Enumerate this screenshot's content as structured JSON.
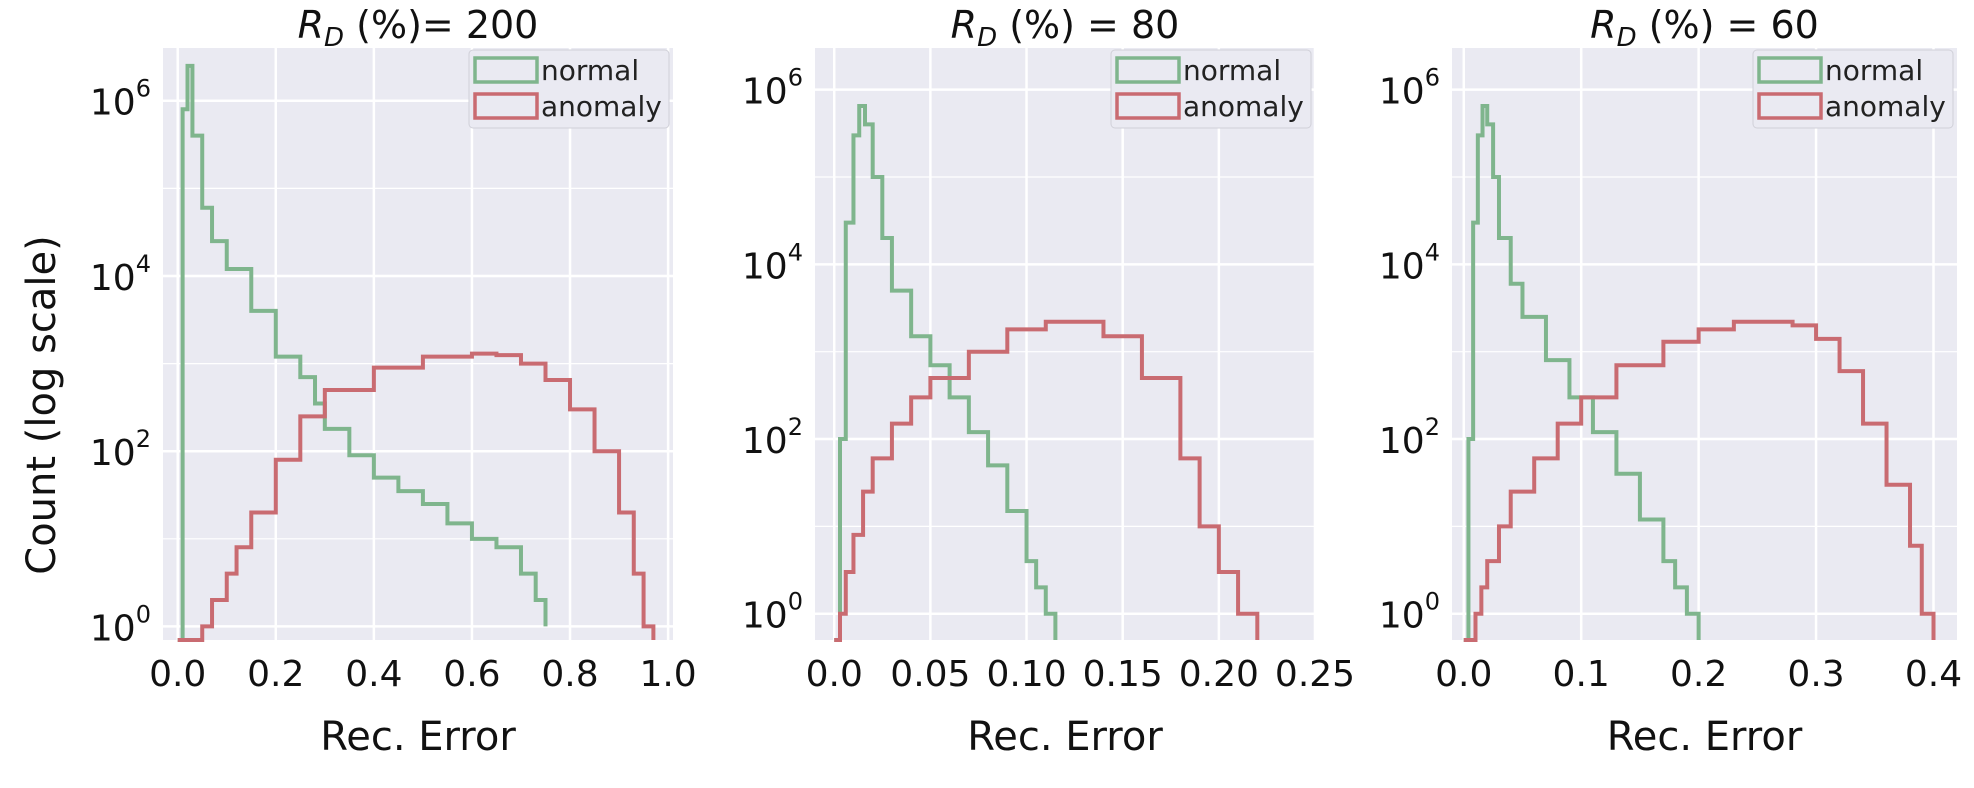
{
  "figure": {
    "ylabel": "Count (log scale)"
  },
  "chart_data": [
    {
      "type": "histogram",
      "title_prefix": "R",
      "title_sub": "D",
      "title_suffix": " (%)= 200",
      "xlabel": "Rec. Error",
      "ylabel": "Count (log scale)",
      "yscale": "log",
      "xlim": [
        -0.03,
        1.01
      ],
      "ylim": [
        0.7,
        4000000
      ],
      "xticks": [
        "0.0",
        "0.2",
        "0.4",
        "0.6",
        "0.8",
        "1.0"
      ],
      "xtick_values": [
        0.0,
        0.2,
        0.4,
        0.6,
        0.8,
        1.0
      ],
      "ytick_exponents": [
        "0",
        "2",
        "4",
        "6"
      ],
      "ytick_values": [
        1,
        100,
        10000,
        1000000
      ],
      "legend": {
        "placement": "top-right",
        "entries": [
          "normal",
          "anomaly"
        ]
      },
      "grid": true,
      "series": [
        {
          "name": "normal",
          "color": "#7fb58d",
          "x": [
            0.0,
            0.01,
            0.02,
            0.03,
            0.05,
            0.07,
            0.1,
            0.15,
            0.2,
            0.25,
            0.28,
            0.3,
            0.35,
            0.4,
            0.45,
            0.5,
            0.55,
            0.6,
            0.65,
            0.7,
            0.73,
            0.75
          ],
          "y": [
            0.7,
            800000,
            2500000,
            400000,
            60000,
            25000,
            12000,
            4000,
            1200,
            700,
            350,
            180,
            90,
            50,
            35,
            25,
            15,
            10,
            8,
            4,
            2,
            1
          ]
        },
        {
          "name": "anomaly",
          "color": "#c96b71",
          "x": [
            0.0,
            0.05,
            0.07,
            0.1,
            0.12,
            0.15,
            0.2,
            0.25,
            0.3,
            0.4,
            0.5,
            0.6,
            0.65,
            0.7,
            0.75,
            0.8,
            0.85,
            0.9,
            0.93,
            0.95,
            0.97
          ],
          "y": [
            0.7,
            1,
            2,
            4,
            8,
            20,
            80,
            250,
            500,
            900,
            1200,
            1300,
            1250,
            1000,
            650,
            300,
            100,
            20,
            4,
            1,
            0.7
          ]
        }
      ]
    },
    {
      "type": "histogram",
      "title_prefix": "R",
      "title_sub": "D",
      "title_suffix": " (%) = 80",
      "xlabel": "Rec. Error",
      "ylabel": "",
      "yscale": "log",
      "xlim": [
        -0.01,
        0.25
      ],
      "ylim": [
        0.5,
        3000000
      ],
      "xticks": [
        "0.0",
        "0.05",
        "0.10",
        "0.15",
        "0.20",
        "0.25"
      ],
      "xtick_values": [
        0.0,
        0.05,
        0.1,
        0.15,
        0.2,
        0.25
      ],
      "ytick_exponents": [
        "0",
        "2",
        "4",
        "6"
      ],
      "ytick_values": [
        1,
        100,
        10000,
        1000000
      ],
      "legend": {
        "placement": "top-right",
        "entries": [
          "normal",
          "anomaly"
        ]
      },
      "grid": true,
      "series": [
        {
          "name": "normal",
          "color": "#7fb58d",
          "x": [
            0.0,
            0.003,
            0.006,
            0.01,
            0.013,
            0.016,
            0.02,
            0.025,
            0.03,
            0.04,
            0.05,
            0.06,
            0.07,
            0.08,
            0.09,
            0.1,
            0.105,
            0.11,
            0.115
          ],
          "y": [
            0.5,
            100,
            30000,
            300000,
            650000,
            400000,
            100000,
            20000,
            5000,
            1500,
            700,
            300,
            120,
            50,
            15,
            4,
            2,
            1,
            0.5
          ]
        },
        {
          "name": "anomaly",
          "color": "#c96b71",
          "x": [
            0.0,
            0.003,
            0.006,
            0.01,
            0.015,
            0.02,
            0.03,
            0.04,
            0.05,
            0.07,
            0.09,
            0.11,
            0.125,
            0.14,
            0.16,
            0.18,
            0.19,
            0.2,
            0.21,
            0.22
          ],
          "y": [
            0.5,
            1,
            3,
            8,
            25,
            60,
            150,
            300,
            500,
            1000,
            1800,
            2200,
            2200,
            1500,
            500,
            60,
            10,
            3,
            1,
            0.5
          ]
        }
      ]
    },
    {
      "type": "histogram",
      "title_prefix": "R",
      "title_sub": "D",
      "title_suffix": " (%) = 60",
      "xlabel": "Rec. Error",
      "ylabel": "",
      "yscale": "log",
      "xlim": [
        -0.01,
        0.42
      ],
      "ylim": [
        0.5,
        3000000
      ],
      "xticks": [
        "0.0",
        "0.1",
        "0.2",
        "0.3",
        "0.4"
      ],
      "xtick_values": [
        0.0,
        0.1,
        0.2,
        0.3,
        0.4
      ],
      "ytick_exponents": [
        "0",
        "2",
        "4",
        "6"
      ],
      "ytick_values": [
        1,
        100,
        10000,
        1000000
      ],
      "legend": {
        "placement": "top-right",
        "entries": [
          "normal",
          "anomaly"
        ]
      },
      "grid": true,
      "series": [
        {
          "name": "normal",
          "color": "#7fb58d",
          "x": [
            0.0,
            0.004,
            0.008,
            0.012,
            0.016,
            0.02,
            0.025,
            0.03,
            0.04,
            0.05,
            0.07,
            0.09,
            0.11,
            0.13,
            0.15,
            0.17,
            0.18,
            0.19,
            0.2
          ],
          "y": [
            0.5,
            100,
            30000,
            300000,
            650000,
            400000,
            100000,
            20000,
            6000,
            2500,
            800,
            300,
            120,
            40,
            12,
            4,
            2,
            1,
            0.5
          ]
        },
        {
          "name": "anomaly",
          "color": "#c96b71",
          "x": [
            0.0,
            0.01,
            0.015,
            0.02,
            0.03,
            0.04,
            0.06,
            0.08,
            0.1,
            0.13,
            0.17,
            0.2,
            0.23,
            0.26,
            0.28,
            0.3,
            0.32,
            0.34,
            0.36,
            0.38,
            0.39,
            0.4
          ],
          "y": [
            0.5,
            1,
            2,
            4,
            10,
            25,
            60,
            150,
            300,
            700,
            1300,
            1800,
            2200,
            2200,
            2000,
            1400,
            600,
            150,
            30,
            6,
            1,
            0.5
          ]
        }
      ]
    }
  ]
}
